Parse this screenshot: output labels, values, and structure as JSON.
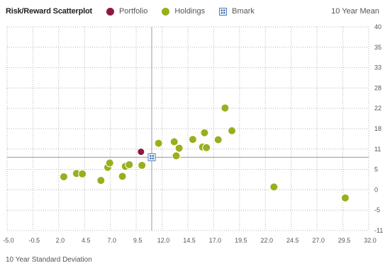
{
  "chart_data": {
    "type": "scatter",
    "title": "Risk/Reward Scatterplot",
    "xlabel": "10 Year Standard Deviation",
    "ylabel": "10 Year Mean",
    "xlim": [
      -5.0,
      32.0
    ],
    "ylim": [
      -11,
      40
    ],
    "x_ticks": [
      "-5.0",
      "-0.5",
      "2.0",
      "4.5",
      "7.0",
      "9.5",
      "12.0",
      "14.5",
      "17.0",
      "19.5",
      "22.0",
      "24.5",
      "27.0",
      "29.5",
      "32.0"
    ],
    "y_ticks": [
      "40",
      "35",
      "33",
      "28",
      "22",
      "18",
      "11",
      "5",
      "0",
      "-5",
      "-11"
    ],
    "grid": true,
    "legend": [
      "Portfolio",
      "Holdings",
      "Bmark"
    ],
    "series": [
      {
        "name": "Portfolio",
        "color": "#8b1a3a",
        "points": [
          [
            8.7,
            10.2
          ]
        ]
      },
      {
        "name": "Holdings",
        "color": "#9bae1c",
        "points": [
          [
            0.8,
            3.2
          ],
          [
            2.1,
            4.0
          ],
          [
            2.7,
            3.9
          ],
          [
            4.6,
            2.3
          ],
          [
            5.3,
            5.6
          ],
          [
            5.5,
            6.9
          ],
          [
            6.8,
            3.3
          ],
          [
            7.1,
            5.9
          ],
          [
            7.5,
            6.4
          ],
          [
            8.8,
            6.2
          ],
          [
            10.5,
            13.0
          ],
          [
            12.1,
            13.5
          ],
          [
            12.6,
            11.3
          ],
          [
            12.3,
            9.0
          ],
          [
            14.0,
            14.3
          ],
          [
            15.0,
            11.7
          ],
          [
            15.4,
            11.5
          ],
          [
            15.2,
            16.6
          ],
          [
            16.6,
            14.2
          ],
          [
            17.3,
            22.1
          ],
          [
            18.0,
            17.3
          ],
          [
            22.3,
            0.7
          ],
          [
            29.6,
            -2.0
          ]
        ]
      },
      {
        "name": "Bmark",
        "color": "#4a78b5",
        "points": [
          [
            9.8,
            8.6
          ]
        ]
      }
    ]
  }
}
